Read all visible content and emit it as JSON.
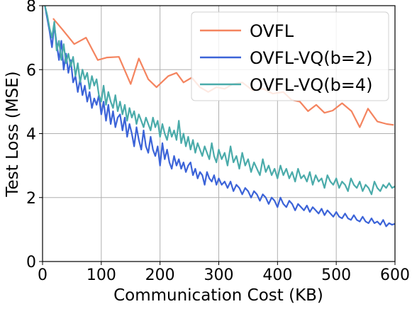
{
  "chart_data": {
    "type": "line",
    "title": "",
    "xlabel": "Communication Cost (KB)",
    "ylabel": "Test Loss (MSE)",
    "xlim": [
      0,
      600
    ],
    "ylim": [
      0,
      8
    ],
    "xticks": [
      0,
      100,
      200,
      300,
      400,
      500,
      600
    ],
    "yticks": [
      0,
      2,
      4,
      6,
      8
    ],
    "grid": true,
    "legend_position": "top-right",
    "series": [
      {
        "name": "OVFL",
        "color": "#f4845f",
        "x": [
          18,
          34,
          54,
          74,
          94,
          110,
          130,
          150,
          164,
          180,
          194,
          214,
          228,
          240,
          254,
          268,
          282,
          296,
          310,
          324,
          340,
          358,
          376,
          392,
          410,
          424,
          438,
          452,
          466,
          480,
          494,
          510,
          526,
          540,
          554,
          570,
          586,
          598
        ],
        "y": [
          7.6,
          7.25,
          6.8,
          7.0,
          6.3,
          6.38,
          6.4,
          5.55,
          6.35,
          5.7,
          5.45,
          5.8,
          5.9,
          5.6,
          5.75,
          5.45,
          5.3,
          5.45,
          5.4,
          5.55,
          5.6,
          5.35,
          5.4,
          5.25,
          5.3,
          5.05,
          5.0,
          4.7,
          4.9,
          4.65,
          4.72,
          4.95,
          4.7,
          4.2,
          4.78,
          4.38,
          4.3,
          4.27
        ]
      },
      {
        "name": "OVFL-VQ(b=2)",
        "color": "#3b63d8",
        "x": [
          4,
          8,
          12,
          16,
          20,
          24,
          28,
          32,
          36,
          40,
          44,
          48,
          52,
          56,
          60,
          64,
          68,
          72,
          76,
          80,
          84,
          88,
          92,
          96,
          100,
          104,
          108,
          112,
          116,
          120,
          124,
          128,
          132,
          136,
          140,
          144,
          148,
          152,
          156,
          160,
          164,
          168,
          172,
          176,
          180,
          184,
          188,
          192,
          196,
          200,
          204,
          208,
          212,
          216,
          220,
          224,
          228,
          232,
          236,
          240,
          244,
          248,
          252,
          256,
          260,
          264,
          268,
          272,
          276,
          280,
          284,
          288,
          292,
          296,
          300,
          305,
          310,
          315,
          320,
          325,
          330,
          335,
          340,
          345,
          350,
          355,
          360,
          365,
          370,
          375,
          380,
          385,
          390,
          395,
          400,
          405,
          410,
          415,
          420,
          425,
          430,
          435,
          440,
          445,
          450,
          455,
          460,
          465,
          470,
          475,
          480,
          485,
          490,
          495,
          500,
          505,
          510,
          515,
          520,
          525,
          530,
          535,
          540,
          545,
          550,
          555,
          560,
          565,
          570,
          575,
          580,
          585,
          590,
          595,
          600
        ],
        "y": [
          8.0,
          7.6,
          7.2,
          6.7,
          7.4,
          6.8,
          6.3,
          6.9,
          6.0,
          6.5,
          5.9,
          6.3,
          5.6,
          5.8,
          5.3,
          5.7,
          5.2,
          5.5,
          5.0,
          5.3,
          4.8,
          5.1,
          4.9,
          5.2,
          4.6,
          5.0,
          4.4,
          4.9,
          4.3,
          4.7,
          4.2,
          4.5,
          4.6,
          4.1,
          4.5,
          3.9,
          4.3,
          4.0,
          3.6,
          4.2,
          3.8,
          3.5,
          4.1,
          3.6,
          3.4,
          3.9,
          3.5,
          3.3,
          3.6,
          3.0,
          3.7,
          3.2,
          3.5,
          3.1,
          2.9,
          3.3,
          3.0,
          3.2,
          2.9,
          3.1,
          2.8,
          3.0,
          3.1,
          2.7,
          2.9,
          2.6,
          2.8,
          2.7,
          2.4,
          2.8,
          2.6,
          2.5,
          2.7,
          2.4,
          2.6,
          2.4,
          2.5,
          2.3,
          2.5,
          2.2,
          2.4,
          2.3,
          2.1,
          2.3,
          2.2,
          2.0,
          2.2,
          2.1,
          1.9,
          2.1,
          2.0,
          1.8,
          2.0,
          1.9,
          1.7,
          2.0,
          1.8,
          1.7,
          1.9,
          1.8,
          1.6,
          1.8,
          1.7,
          1.6,
          1.75,
          1.55,
          1.7,
          1.6,
          1.5,
          1.65,
          1.45,
          1.6,
          1.5,
          1.4,
          1.55,
          1.4,
          1.35,
          1.5,
          1.35,
          1.3,
          1.45,
          1.3,
          1.25,
          1.4,
          1.25,
          1.2,
          1.35,
          1.2,
          1.25,
          1.15,
          1.3,
          1.1,
          1.2,
          1.15,
          1.18
        ]
      },
      {
        "name": "OVFL-VQ(b=4)",
        "color": "#4aabaa",
        "x": [
          4,
          8,
          12,
          16,
          20,
          24,
          28,
          32,
          36,
          40,
          44,
          48,
          52,
          56,
          60,
          64,
          68,
          72,
          76,
          80,
          84,
          88,
          92,
          96,
          100,
          104,
          108,
          112,
          116,
          120,
          124,
          128,
          132,
          136,
          140,
          144,
          148,
          152,
          156,
          160,
          164,
          168,
          172,
          176,
          180,
          184,
          188,
          192,
          196,
          200,
          204,
          208,
          212,
          216,
          220,
          224,
          228,
          232,
          236,
          240,
          244,
          248,
          252,
          256,
          260,
          264,
          268,
          272,
          276,
          280,
          284,
          288,
          292,
          296,
          300,
          305,
          310,
          315,
          320,
          325,
          330,
          335,
          340,
          345,
          350,
          355,
          360,
          365,
          370,
          375,
          380,
          385,
          390,
          395,
          400,
          405,
          410,
          415,
          420,
          425,
          430,
          435,
          440,
          445,
          450,
          455,
          460,
          465,
          470,
          475,
          480,
          485,
          490,
          495,
          500,
          505,
          510,
          515,
          520,
          525,
          530,
          535,
          540,
          545,
          550,
          555,
          560,
          565,
          570,
          575,
          580,
          585,
          590,
          595,
          600
        ],
        "y": [
          8.0,
          7.7,
          7.3,
          7.0,
          7.5,
          6.6,
          6.9,
          6.3,
          6.8,
          6.2,
          6.5,
          6.1,
          6.4,
          5.8,
          6.2,
          5.6,
          6.0,
          5.7,
          5.9,
          5.4,
          5.8,
          5.5,
          5.7,
          5.2,
          5.0,
          5.5,
          4.9,
          5.3,
          5.0,
          4.8,
          5.2,
          4.7,
          5.0,
          4.6,
          4.9,
          4.4,
          4.8,
          4.5,
          4.7,
          4.3,
          4.6,
          4.4,
          4.2,
          4.5,
          4.3,
          4.1,
          4.5,
          4.2,
          4.4,
          3.9,
          4.3,
          4.0,
          3.8,
          4.2,
          3.9,
          4.1,
          3.8,
          4.4,
          3.7,
          4.0,
          3.6,
          3.9,
          3.5,
          3.8,
          3.4,
          3.7,
          3.5,
          3.3,
          3.6,
          3.4,
          3.2,
          3.7,
          3.3,
          3.1,
          3.5,
          3.2,
          3.4,
          3.0,
          3.6,
          3.1,
          3.3,
          2.9,
          3.4,
          3.0,
          3.2,
          2.8,
          3.1,
          2.9,
          2.7,
          3.2,
          2.8,
          3.0,
          2.7,
          2.9,
          2.6,
          3.0,
          2.7,
          2.9,
          2.6,
          2.8,
          2.5,
          2.9,
          2.6,
          2.7,
          2.5,
          2.8,
          2.4,
          2.7,
          2.5,
          2.6,
          2.3,
          2.7,
          2.5,
          2.4,
          2.6,
          2.3,
          2.5,
          2.4,
          2.2,
          2.6,
          2.4,
          2.3,
          2.5,
          2.2,
          2.4,
          2.3,
          2.1,
          2.5,
          2.3,
          2.2,
          2.4,
          2.3,
          2.45,
          2.3,
          2.35
        ]
      }
    ]
  }
}
